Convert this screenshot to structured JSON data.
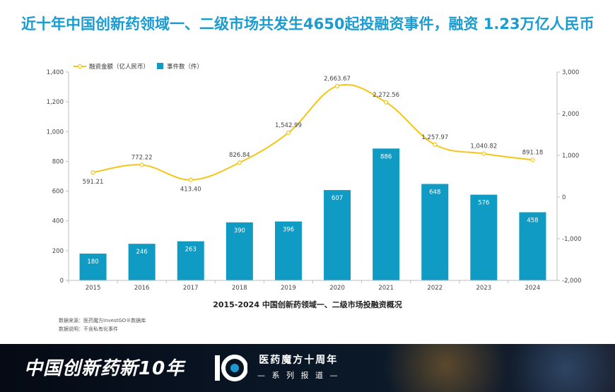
{
  "title": "近十年中国创新药领域一、二级市场共发生4650起投融资事件，融资 1.23万亿人民币",
  "chart_data": {
    "type": "bar+line",
    "title": "2015-2024 中国创新药领域一、二级市场投融资概况",
    "categories": [
      "2015",
      "2016",
      "2017",
      "2018",
      "2019",
      "2020",
      "2021",
      "2022",
      "2023",
      "2024"
    ],
    "series": [
      {
        "name": "事件数（件）",
        "type": "bar",
        "axis": "left",
        "values": [
          180,
          246,
          263,
          390,
          396,
          607,
          886,
          648,
          576,
          458
        ],
        "labels": [
          "180",
          "246",
          "263",
          "390",
          "396",
          "607",
          "886",
          "648",
          "576",
          "458"
        ],
        "color": "#0f9bc4"
      },
      {
        "name": "融资金额（亿人民币）",
        "type": "line",
        "axis": "right",
        "values": [
          591.21,
          772.22,
          413.4,
          826.84,
          1542.99,
          2663.67,
          2272.56,
          1257.97,
          1040.82,
          891.18
        ],
        "labels": [
          "591.21",
          "772.22",
          "413.40",
          "826.84",
          "1,542.99",
          "2,663.67",
          "2,272.56",
          "1,257.97",
          "1,040.82",
          "891.18"
        ],
        "color": "#f5c518"
      }
    ],
    "left_axis": {
      "min": 0,
      "max": 1400,
      "ticks": [
        "0",
        "200",
        "400",
        "600",
        "800",
        "1,000",
        "1,200",
        "1,400"
      ]
    },
    "right_axis": {
      "min": -2000,
      "max": 3000,
      "ticks": [
        "-2,000",
        "-1,000",
        "0",
        "1,000",
        "2,000",
        "3,000"
      ]
    },
    "legend": "top-left"
  },
  "source": {
    "line1": "数据来源：医药魔方InvestGO®数据库",
    "line2": "数据说明：不含私有化事件"
  },
  "banner": {
    "title": "中国创新药新10年",
    "anniversary": "医药魔方十周年",
    "series": "— 系 列 报 道 —",
    "colors": {
      "bg": "#0a1626",
      "accent": "#f0a030"
    }
  }
}
